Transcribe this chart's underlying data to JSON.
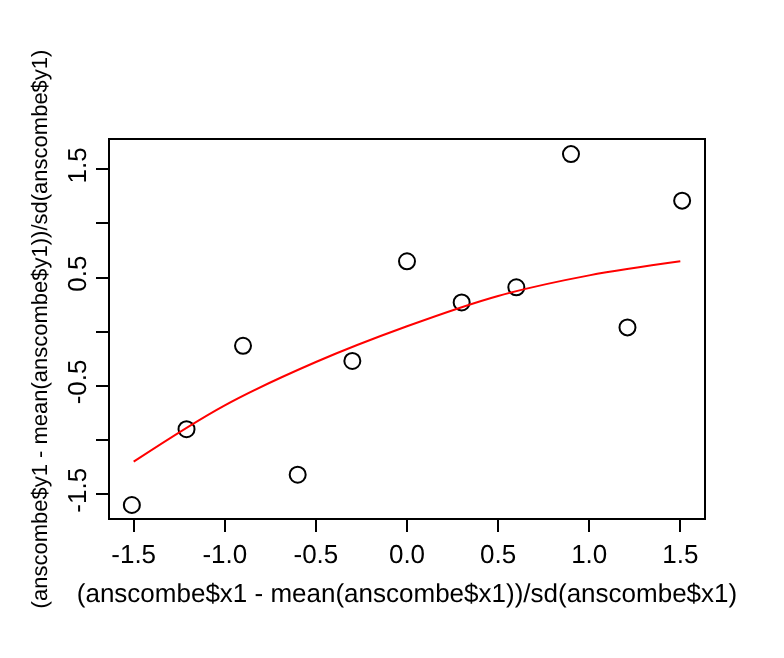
{
  "chart_data": {
    "type": "scatter",
    "xlabel": "(anscombe$x1 - mean(anscombe$x1))/sd(anscombe$x1)",
    "ylabel": "(anscombe$y1 - mean(anscombe$y1))/sd(anscombe$y1)",
    "x": [
      0.3,
      -0.3,
      1.21,
      0,
      0.6,
      1.51,
      -0.9,
      -1.51,
      0.9,
      -0.6,
      -1.21
    ],
    "series": [
      {
        "color": "#000000",
        "marker": "circle",
        "values": [
          0.27,
          -0.27,
          0.04,
          0.65,
          0.41,
          1.21,
          -0.13,
          -1.6,
          1.64,
          -1.32,
          -0.9
        ]
      },
      {
        "type": "line",
        "color": "#ff0000",
        "marker": "none",
        "x": [
          -1.5,
          -1.0,
          -0.5,
          0,
          0.5,
          1.0,
          1.5
        ],
        "values": [
          -1.2,
          -0.68,
          -0.28,
          0.05,
          0.33,
          0.52,
          0.65
        ]
      }
    ],
    "xlim": [
      -1.63,
      1.63
    ],
    "ylim": [
      -1.72,
      1.77
    ],
    "xticks": [
      -1.5,
      {
        "value": -1,
        "label": "-1.0"
      },
      -0.5,
      {
        "value": 0,
        "label": "0.0"
      },
      0.5,
      {
        "value": 1,
        "label": "1.0"
      },
      1.5
    ],
    "yticks": [
      -1.5,
      {
        "value": -1.0,
        "label": null
      },
      -0.5,
      {
        "value": 0,
        "label": null
      },
      0.5,
      {
        "value": 1.0,
        "label": null
      },
      1.5
    ]
  }
}
